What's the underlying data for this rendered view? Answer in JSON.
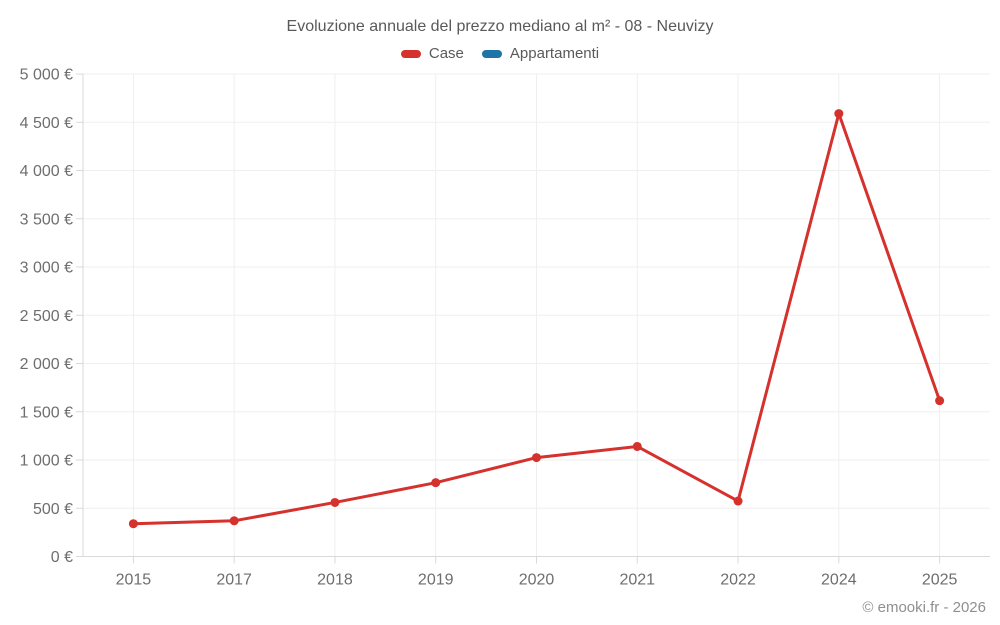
{
  "title": "Evoluzione annuale del prezzo mediano al m² - 08 - Neuvizy",
  "legend": [
    {
      "label": "Case",
      "color": "#d5312d"
    },
    {
      "label": "Appartamenti",
      "color": "#1d74a5"
    }
  ],
  "footer": "© emooki.fr - 2026",
  "chart_data": {
    "type": "line",
    "title": "Evoluzione annuale del prezzo mediano al m² - 08 - Neuvizy",
    "categories": [
      "2015",
      "2017",
      "2018",
      "2019",
      "2020",
      "2021",
      "2022",
      "2024",
      "2025"
    ],
    "series": [
      {
        "name": "Case",
        "color": "#d5312d",
        "values": [
          340,
          370,
          560,
          765,
          1025,
          1140,
          575,
          4590,
          1615
        ]
      },
      {
        "name": "Appartamenti",
        "color": "#1d74a5",
        "values": []
      }
    ],
    "xlabel": "",
    "ylabel": "",
    "ylim": [
      0,
      5000
    ],
    "yticks": [
      0,
      500,
      1000,
      1500,
      2000,
      2500,
      3000,
      3500,
      4000,
      4500,
      5000
    ],
    "ytick_suffix": " €",
    "grid": true,
    "legend_position": "top",
    "marker_radius": 4.5,
    "line_width": 3
  }
}
